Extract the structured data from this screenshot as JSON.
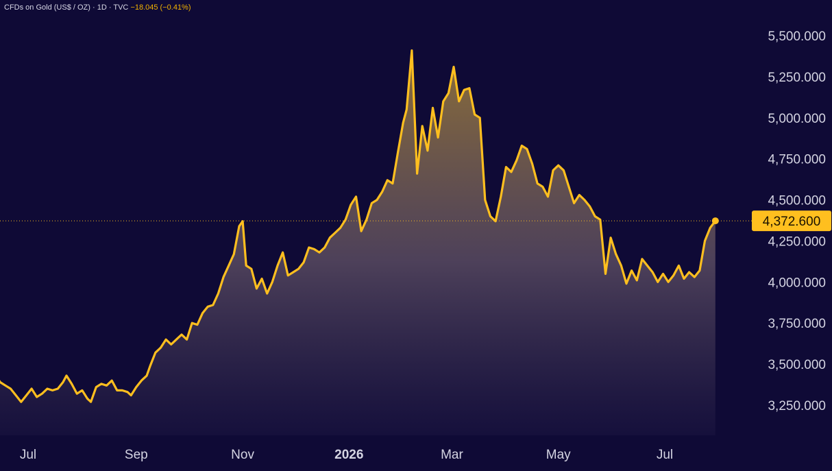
{
  "header": {
    "symbol": "CFDs on Gold (US$ / OZ)",
    "interval": "1D",
    "source": "TVC",
    "change": "−18.045 (−0.41%)"
  },
  "chart_data": {
    "type": "area",
    "title": "CFDs on Gold (US$ / OZ)",
    "xlabel": "",
    "ylabel": "",
    "ylim": [
      3100,
      5560
    ],
    "y_ticks": [
      {
        "value": 3250,
        "label": "3,250.000"
      },
      {
        "value": 3500,
        "label": "3,500.000"
      },
      {
        "value": 3750,
        "label": "3,750.000"
      },
      {
        "value": 4000,
        "label": "4,000.000"
      },
      {
        "value": 4250,
        "label": "4,250.000"
      },
      {
        "value": 4500,
        "label": "4,500.000"
      },
      {
        "value": 4750,
        "label": "4,750.000"
      },
      {
        "value": 5000,
        "label": "5,000.000"
      },
      {
        "value": 5250,
        "label": "5,250.000"
      },
      {
        "value": 5500,
        "label": "5,500.000"
      }
    ],
    "x_ticks": [
      {
        "label": "Jul",
        "date": "2025-07-01",
        "bold": false
      },
      {
        "label": "Sep",
        "date": "2025-09-01",
        "bold": false
      },
      {
        "label": "Nov",
        "date": "2025-11-01",
        "bold": false
      },
      {
        "label": "2026",
        "date": "2026-01-01",
        "bold": true
      },
      {
        "label": "Mar",
        "date": "2026-03-01",
        "bold": false
      },
      {
        "label": "May",
        "date": "2026-05-01",
        "bold": false
      },
      {
        "label": "Jul",
        "date": "2026-07-01",
        "bold": false
      }
    ],
    "last_value": 4372.6,
    "last_label": "4,372.600",
    "grid": false,
    "colors": {
      "line": "#ffbf1f",
      "label_bg": "#ffbf1f"
    },
    "series": [
      {
        "points": [
          [
            "2025-06-12",
            3440
          ],
          [
            "2025-06-15",
            3390
          ],
          [
            "2025-06-18",
            3370
          ],
          [
            "2025-06-21",
            3350
          ],
          [
            "2025-06-24",
            3310
          ],
          [
            "2025-06-27",
            3270
          ],
          [
            "2025-06-30",
            3310
          ],
          [
            "2025-07-03",
            3350
          ],
          [
            "2025-07-06",
            3300
          ],
          [
            "2025-07-09",
            3320
          ],
          [
            "2025-07-12",
            3350
          ],
          [
            "2025-07-15",
            3340
          ],
          [
            "2025-07-18",
            3350
          ],
          [
            "2025-07-21",
            3390
          ],
          [
            "2025-07-23",
            3430
          ],
          [
            "2025-07-26",
            3380
          ],
          [
            "2025-07-29",
            3320
          ],
          [
            "2025-08-01",
            3340
          ],
          [
            "2025-08-04",
            3290
          ],
          [
            "2025-08-06",
            3270
          ],
          [
            "2025-08-09",
            3360
          ],
          [
            "2025-08-12",
            3380
          ],
          [
            "2025-08-15",
            3370
          ],
          [
            "2025-08-18",
            3400
          ],
          [
            "2025-08-21",
            3340
          ],
          [
            "2025-08-24",
            3340
          ],
          [
            "2025-08-27",
            3330
          ],
          [
            "2025-08-29",
            3310
          ],
          [
            "2025-09-01",
            3360
          ],
          [
            "2025-09-04",
            3400
          ],
          [
            "2025-09-07",
            3430
          ],
          [
            "2025-09-09",
            3490
          ],
          [
            "2025-09-12",
            3570
          ],
          [
            "2025-09-15",
            3600
          ],
          [
            "2025-09-18",
            3650
          ],
          [
            "2025-09-21",
            3620
          ],
          [
            "2025-09-24",
            3650
          ],
          [
            "2025-09-27",
            3680
          ],
          [
            "2025-09-30",
            3650
          ],
          [
            "2025-10-03",
            3750
          ],
          [
            "2025-10-06",
            3740
          ],
          [
            "2025-10-09",
            3810
          ],
          [
            "2025-10-12",
            3850
          ],
          [
            "2025-10-15",
            3860
          ],
          [
            "2025-10-18",
            3930
          ],
          [
            "2025-10-21",
            4030
          ],
          [
            "2025-10-24",
            4100
          ],
          [
            "2025-10-27",
            4170
          ],
          [
            "2025-10-30",
            4340
          ],
          [
            "2025-11-01",
            4370
          ],
          [
            "2025-11-03",
            4100
          ],
          [
            "2025-11-06",
            4080
          ],
          [
            "2025-11-09",
            3960
          ],
          [
            "2025-11-12",
            4020
          ],
          [
            "2025-11-15",
            3930
          ],
          [
            "2025-11-18",
            4000
          ],
          [
            "2025-11-21",
            4100
          ],
          [
            "2025-11-24",
            4180
          ],
          [
            "2025-11-27",
            4040
          ],
          [
            "2025-11-30",
            4060
          ],
          [
            "2025-12-03",
            4080
          ],
          [
            "2025-12-06",
            4120
          ],
          [
            "2025-12-09",
            4210
          ],
          [
            "2025-12-12",
            4200
          ],
          [
            "2025-12-15",
            4180
          ],
          [
            "2025-12-18",
            4210
          ],
          [
            "2025-12-21",
            4270
          ],
          [
            "2025-12-24",
            4300
          ],
          [
            "2025-12-27",
            4330
          ],
          [
            "2025-12-30",
            4380
          ],
          [
            "2026-01-02",
            4470
          ],
          [
            "2026-01-05",
            4520
          ],
          [
            "2026-01-08",
            4310
          ],
          [
            "2026-01-11",
            4380
          ],
          [
            "2026-01-14",
            4480
          ],
          [
            "2026-01-17",
            4500
          ],
          [
            "2026-01-20",
            4550
          ],
          [
            "2026-01-23",
            4620
          ],
          [
            "2026-01-26",
            4600
          ],
          [
            "2026-01-29",
            4790
          ],
          [
            "2026-02-01",
            4970
          ],
          [
            "2026-02-03",
            5050
          ],
          [
            "2026-02-06",
            5410
          ],
          [
            "2026-02-09",
            4660
          ],
          [
            "2026-02-12",
            4950
          ],
          [
            "2026-02-15",
            4800
          ],
          [
            "2026-02-18",
            5060
          ],
          [
            "2026-02-21",
            4880
          ],
          [
            "2026-02-24",
            5100
          ],
          [
            "2026-02-27",
            5150
          ],
          [
            "2026-03-02",
            5310
          ],
          [
            "2026-03-05",
            5100
          ],
          [
            "2026-03-08",
            5170
          ],
          [
            "2026-03-11",
            5180
          ],
          [
            "2026-03-14",
            5020
          ],
          [
            "2026-03-17",
            5000
          ],
          [
            "2026-03-20",
            4500
          ],
          [
            "2026-03-23",
            4400
          ],
          [
            "2026-03-26",
            4370
          ],
          [
            "2026-03-29",
            4520
          ],
          [
            "2026-04-01",
            4700
          ],
          [
            "2026-04-04",
            4670
          ],
          [
            "2026-04-07",
            4740
          ],
          [
            "2026-04-10",
            4830
          ],
          [
            "2026-04-13",
            4810
          ],
          [
            "2026-04-16",
            4720
          ],
          [
            "2026-04-19",
            4600
          ],
          [
            "2026-04-22",
            4580
          ],
          [
            "2026-04-25",
            4520
          ],
          [
            "2026-04-28",
            4680
          ],
          [
            "2026-05-01",
            4710
          ],
          [
            "2026-05-04",
            4680
          ],
          [
            "2026-05-07",
            4580
          ],
          [
            "2026-05-10",
            4480
          ],
          [
            "2026-05-13",
            4530
          ],
          [
            "2026-05-16",
            4500
          ],
          [
            "2026-05-19",
            4460
          ],
          [
            "2026-05-22",
            4400
          ],
          [
            "2026-05-25",
            4380
          ],
          [
            "2026-05-28",
            4050
          ],
          [
            "2026-05-31",
            4270
          ],
          [
            "2026-06-03",
            4170
          ],
          [
            "2026-06-06",
            4100
          ],
          [
            "2026-06-09",
            3990
          ],
          [
            "2026-06-12",
            4070
          ],
          [
            "2026-06-15",
            4010
          ],
          [
            "2026-06-18",
            4140
          ],
          [
            "2026-06-21",
            4100
          ],
          [
            "2026-06-24",
            4060
          ],
          [
            "2026-06-27",
            4000
          ],
          [
            "2026-06-30",
            4050
          ],
          [
            "2026-07-03",
            4000
          ],
          [
            "2026-07-06",
            4040
          ],
          [
            "2026-07-09",
            4100
          ],
          [
            "2026-07-12",
            4020
          ],
          [
            "2026-07-15",
            4060
          ],
          [
            "2026-07-18",
            4030
          ],
          [
            "2026-07-21",
            4070
          ],
          [
            "2026-07-24",
            4250
          ],
          [
            "2026-07-27",
            4330
          ],
          [
            "2026-07-30",
            4372.6
          ]
        ]
      }
    ]
  }
}
